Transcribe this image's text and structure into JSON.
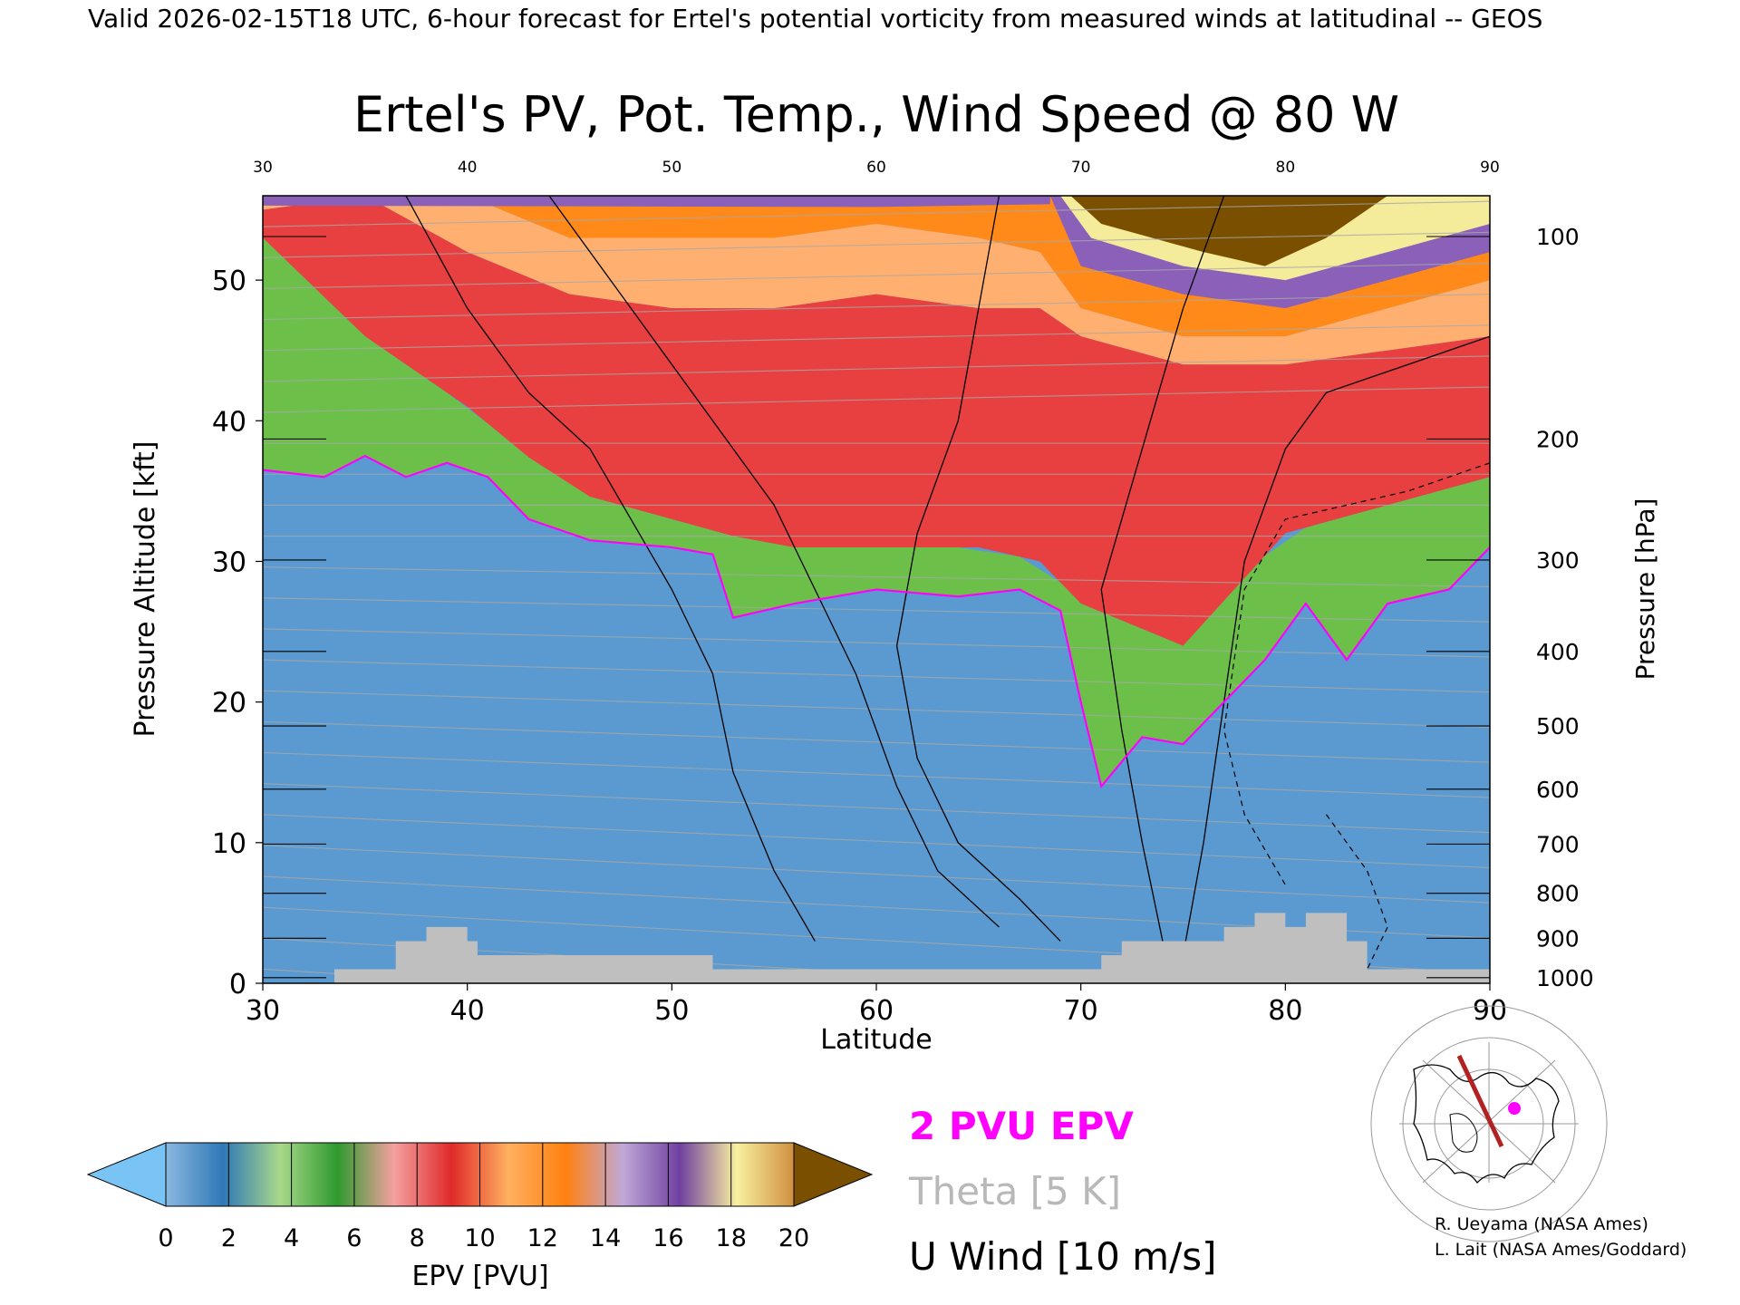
{
  "header": {
    "valid_line": "Valid 2026-02-15T18 UTC, 6-hour forecast for Ertel's potential vorticity from measured winds at latitudinal -- GEOS"
  },
  "chart_data": {
    "type": "heatmap",
    "title": "Ertel's PV, Pot. Temp., Wind Speed @ 80 W",
    "xlabel": "Latitude",
    "ylabel_left": "Pressure Altitude [kft]",
    "ylabel_right": "Pressure [hPa]",
    "xlim": [
      30,
      90
    ],
    "ylim_kft": [
      0,
      56
    ],
    "x_ticks": [
      30,
      40,
      50,
      60,
      70,
      80,
      90
    ],
    "y_ticks_kft": [
      0,
      10,
      20,
      30,
      40,
      50
    ],
    "pressure_ticks": [
      {
        "hpa": "100",
        "kft": 53.1
      },
      {
        "hpa": "200",
        "kft": 38.7
      },
      {
        "hpa": "300",
        "kft": 30.1
      },
      {
        "hpa": "400",
        "kft": 23.6
      },
      {
        "hpa": "500",
        "kft": 18.3
      },
      {
        "hpa": "600",
        "kft": 13.8
      },
      {
        "hpa": "700",
        "kft": 9.9
      },
      {
        "hpa": "800",
        "kft": 6.4
      },
      {
        "hpa": "900",
        "kft": 3.2
      },
      {
        "hpa": "1000",
        "kft": 0.4
      }
    ],
    "tropopause_2pvu_kft": [
      {
        "lat": 30,
        "kft": 36.5
      },
      {
        "lat": 33,
        "kft": 36.0
      },
      {
        "lat": 35,
        "kft": 37.5
      },
      {
        "lat": 37,
        "kft": 36.0
      },
      {
        "lat": 39,
        "kft": 37.0
      },
      {
        "lat": 41,
        "kft": 36.0
      },
      {
        "lat": 43,
        "kft": 33.0
      },
      {
        "lat": 46,
        "kft": 31.5
      },
      {
        "lat": 50,
        "kft": 31.0
      },
      {
        "lat": 52,
        "kft": 30.5
      },
      {
        "lat": 53,
        "kft": 26.0
      },
      {
        "lat": 56,
        "kft": 27.0
      },
      {
        "lat": 60,
        "kft": 28.0
      },
      {
        "lat": 64,
        "kft": 27.5
      },
      {
        "lat": 67,
        "kft": 28.0
      },
      {
        "lat": 69,
        "kft": 26.5
      },
      {
        "lat": 70,
        "kft": 20.0
      },
      {
        "lat": 71,
        "kft": 14.0
      },
      {
        "lat": 73,
        "kft": 17.5
      },
      {
        "lat": 75,
        "kft": 17.0
      },
      {
        "lat": 77,
        "kft": 20.0
      },
      {
        "lat": 79,
        "kft": 23.0
      },
      {
        "lat": 81,
        "kft": 27.0
      },
      {
        "lat": 83,
        "kft": 23.0
      },
      {
        "lat": 85,
        "kft": 27.0
      },
      {
        "lat": 88,
        "kft": 28.0
      },
      {
        "lat": 90,
        "kft": 31.0
      }
    ],
    "top_layers_kft": [
      {
        "lat": 30,
        "green": 53,
        "red": 55,
        "orange": 56
      },
      {
        "lat": 35,
        "green": 46,
        "red": 56,
        "orange": 56
      },
      {
        "lat": 40,
        "green": 41,
        "red": 52,
        "orange": 56
      },
      {
        "lat": 45,
        "green": 35,
        "red": 49,
        "orange": 53
      },
      {
        "lat": 50,
        "green": 33,
        "red": 48,
        "orange": 53
      },
      {
        "lat": 55,
        "green": 31,
        "red": 48,
        "orange": 53
      },
      {
        "lat": 60,
        "green": 31,
        "red": 49,
        "orange": 54
      },
      {
        "lat": 65,
        "green": 31,
        "red": 48,
        "orange": 53
      },
      {
        "lat": 68,
        "green": 30,
        "red": 48,
        "orange": 52
      },
      {
        "lat": 70,
        "green": 27,
        "red": 46,
        "orange": 48
      },
      {
        "lat": 75,
        "green": 24,
        "red": 44,
        "orange": 46
      },
      {
        "lat": 80,
        "green": 32,
        "red": 44,
        "orange": 46
      },
      {
        "lat": 85,
        "green": 34,
        "red": 45,
        "orange": 48
      },
      {
        "lat": 90,
        "green": 36,
        "red": 46,
        "orange": 50
      }
    ],
    "topography_kft": [
      {
        "lat": 30,
        "kft": 0
      },
      {
        "lat": 33,
        "kft": 0
      },
      {
        "lat": 33.5,
        "kft": 1
      },
      {
        "lat": 36,
        "kft": 1
      },
      {
        "lat": 36.5,
        "kft": 3
      },
      {
        "lat": 38,
        "kft": 4
      },
      {
        "lat": 40,
        "kft": 3
      },
      {
        "lat": 40.5,
        "kft": 2
      },
      {
        "lat": 46,
        "kft": 2
      },
      {
        "lat": 49,
        "kft": 2
      },
      {
        "lat": 52,
        "kft": 1
      },
      {
        "lat": 69,
        "kft": 1
      },
      {
        "lat": 71,
        "kft": 2
      },
      {
        "lat": 72,
        "kft": 3
      },
      {
        "lat": 75,
        "kft": 3
      },
      {
        "lat": 77,
        "kft": 4
      },
      {
        "lat": 78.5,
        "kft": 5
      },
      {
        "lat": 80,
        "kft": 4
      },
      {
        "lat": 81,
        "kft": 5
      },
      {
        "lat": 83,
        "kft": 3
      },
      {
        "lat": 84,
        "kft": 1
      },
      {
        "lat": 90,
        "kft": 0
      }
    ],
    "colorbar": {
      "label": "EPV [PVU]",
      "ticks": [
        "0",
        "2",
        "4",
        "6",
        "8",
        "10",
        "12",
        "14",
        "16",
        "18",
        "20"
      ],
      "colors": [
        "#8ab8df",
        "#2f78b6",
        "#a8d88a",
        "#2e9a2e",
        "#f5a0a0",
        "#e02a2a",
        "#ffb060",
        "#ff8010",
        "#c0a8d8",
        "#7040a0",
        "#f8f0a0",
        "#d09040"
      ],
      "under_color": "#79c3f5",
      "over_color": "#7a5000"
    },
    "legend": [
      {
        "text": "2 PVU EPV",
        "color": "#ff00ff"
      },
      {
        "text": "Theta [5 K]",
        "color": "#b8b8b8"
      },
      {
        "text": "U Wind [10 m/s]",
        "color": "#000000"
      }
    ]
  },
  "credits": {
    "line1": "R. Ueyama (NASA Ames)",
    "line2": "L. Lait (NASA Ames/Goddard)"
  },
  "colors": {
    "strat_high": "#7a5000",
    "tropo_blue": "#5a9ad0",
    "tropopause_line": "#ff00ff",
    "terrain": "#bfbfbf"
  }
}
